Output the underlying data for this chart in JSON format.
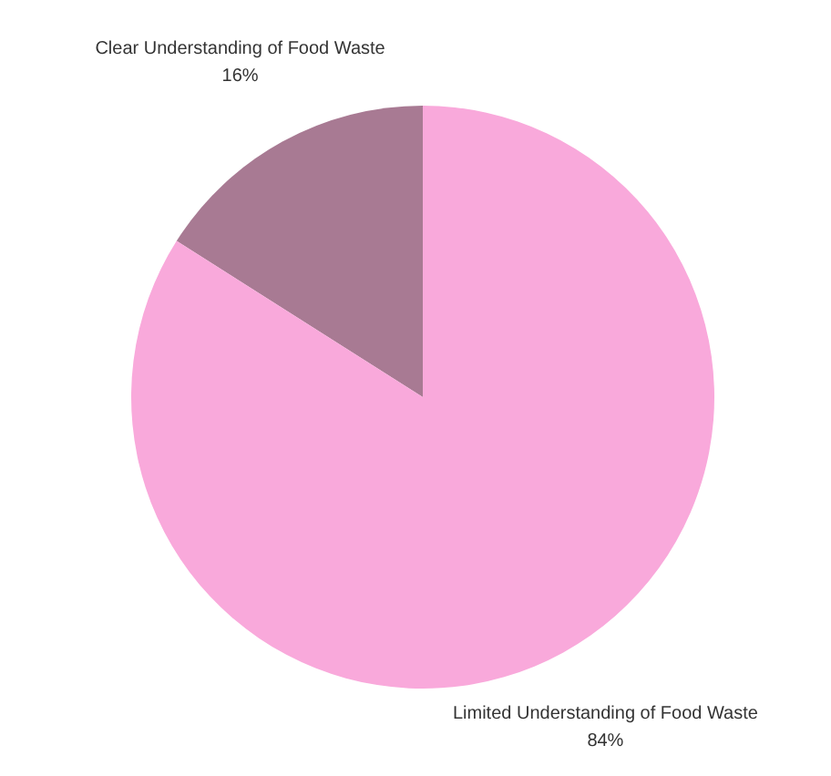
{
  "chart_data": {
    "type": "pie",
    "categories": [
      "Clear Understanding of Food Waste",
      "Limited Understanding of Food Waste"
    ],
    "values": [
      16,
      84
    ],
    "colors": [
      "#a87a93",
      "#f9a9db"
    ],
    "value_labels": [
      "16%",
      "84%"
    ]
  }
}
